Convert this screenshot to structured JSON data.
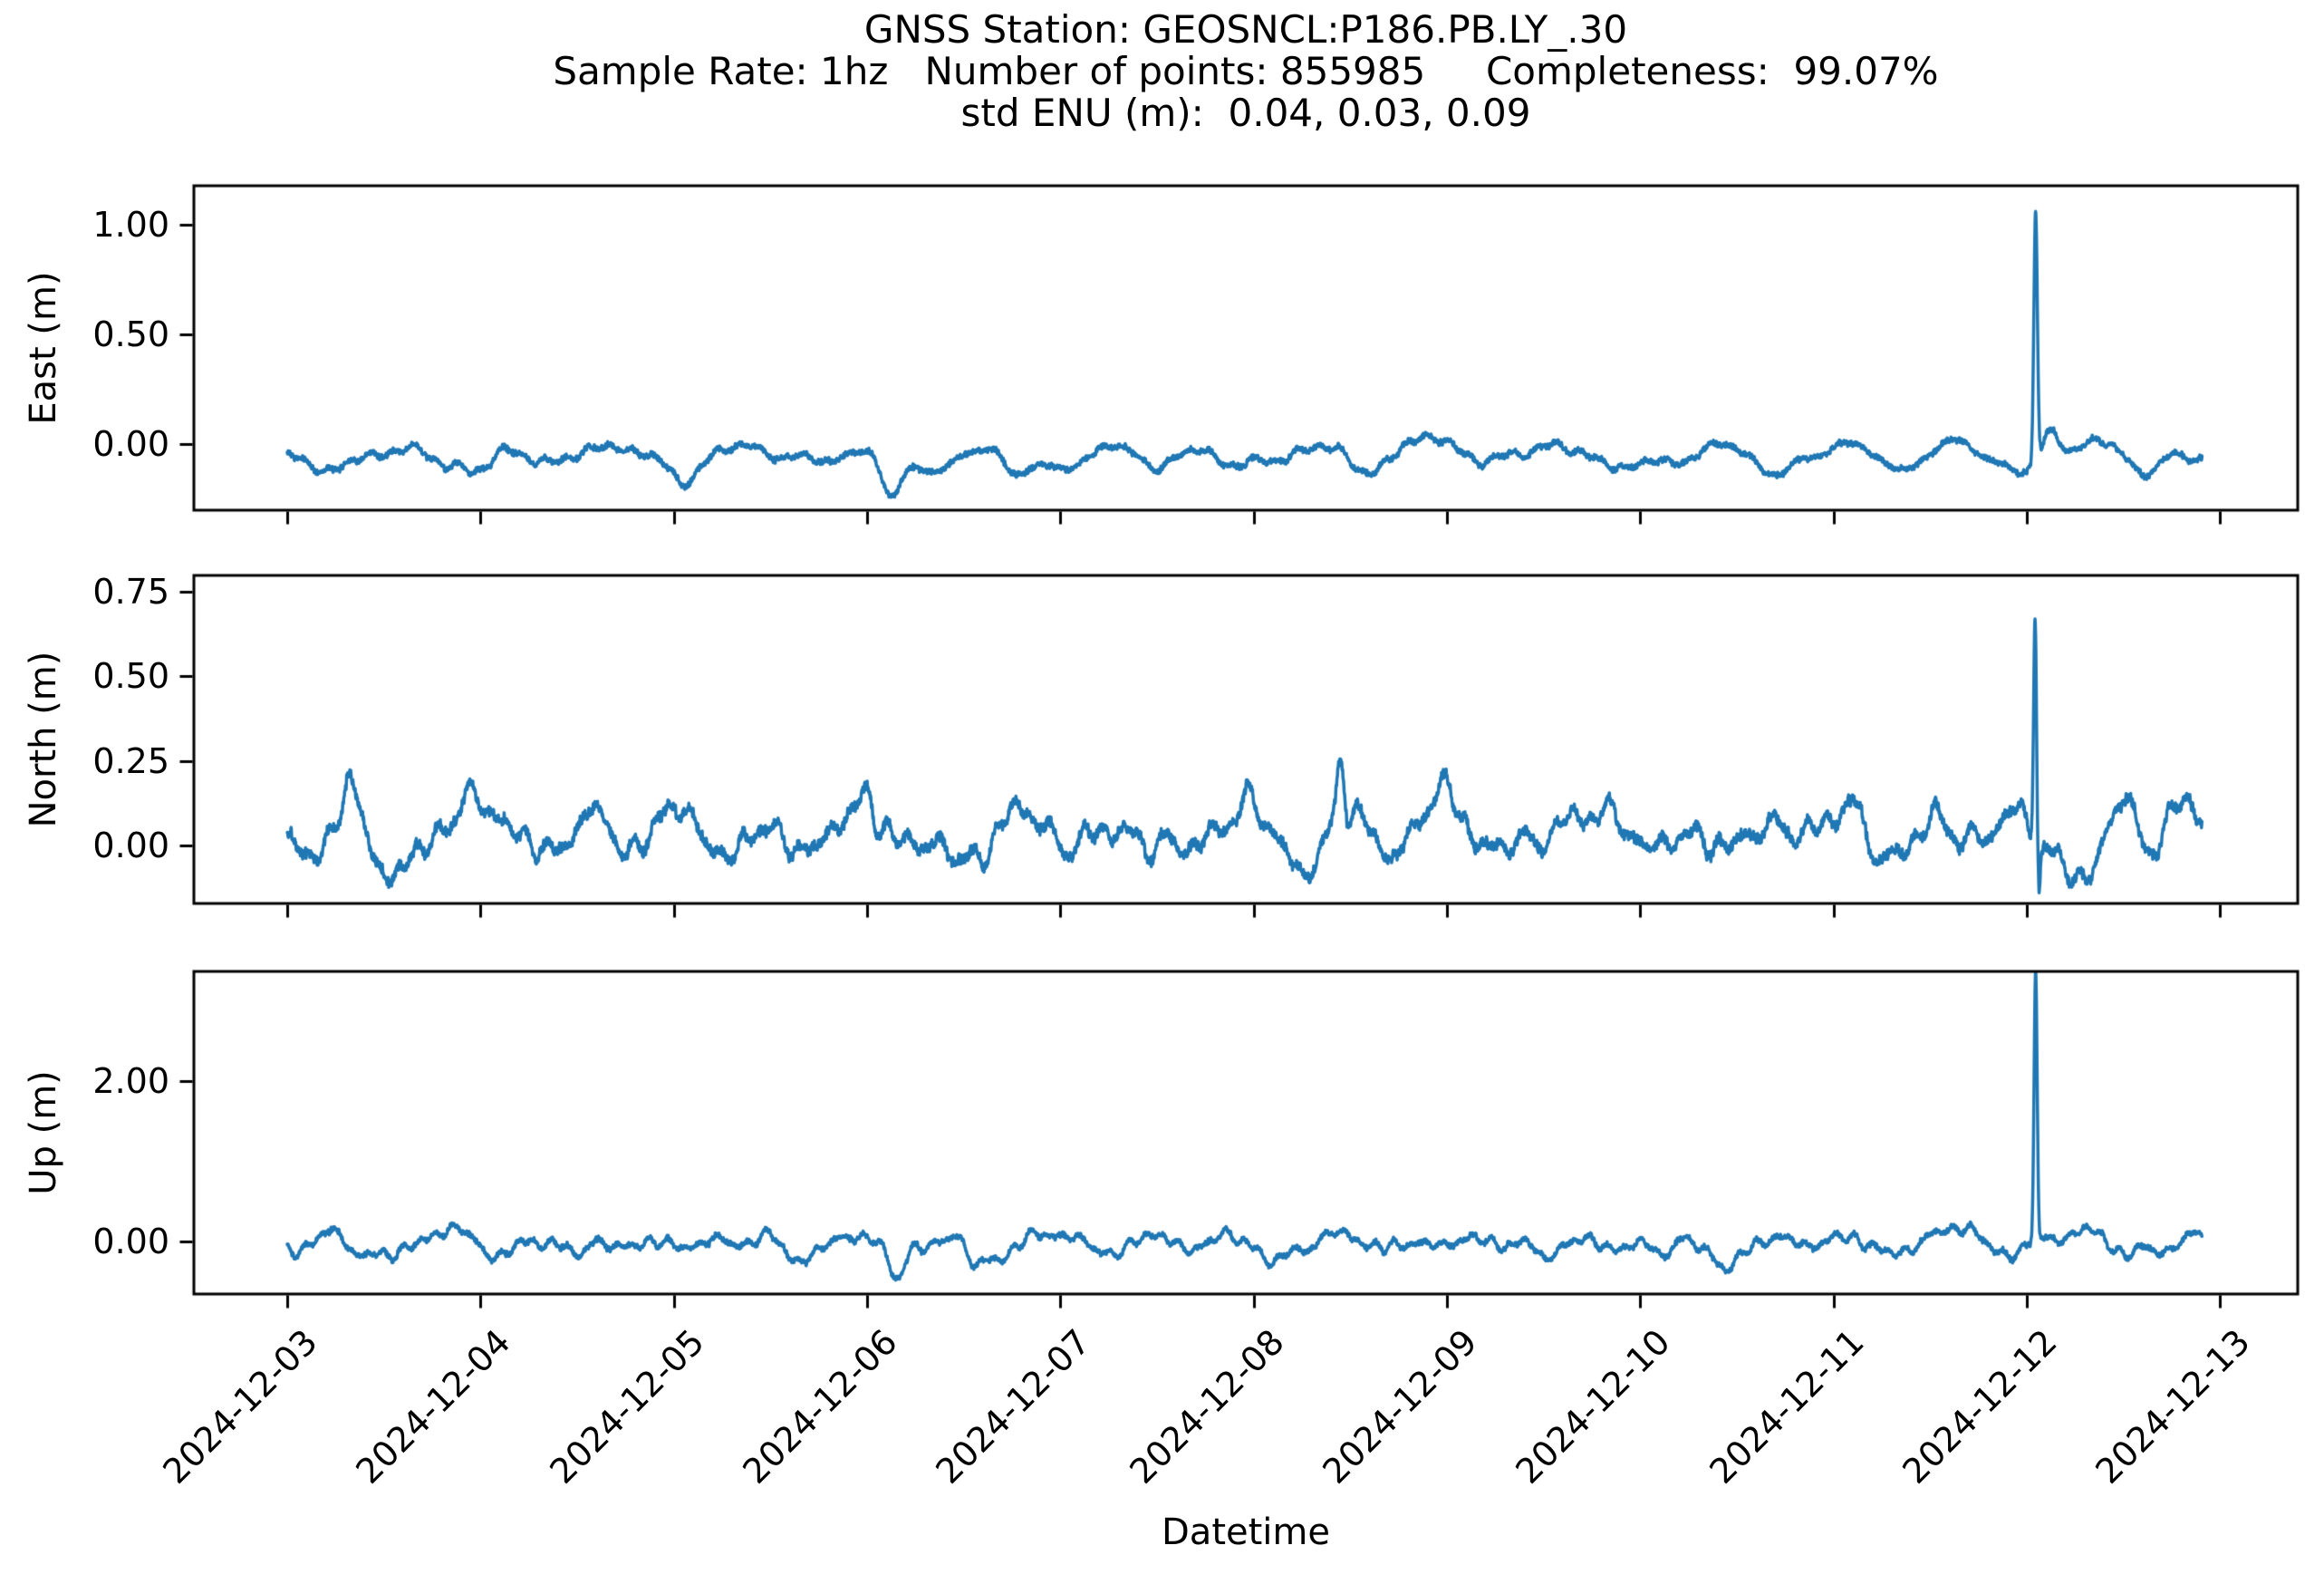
{
  "title": {
    "line1": "GNSS Station: GEOSNCL:P186.PB.LY_.30",
    "line2": "Sample Rate: 1hz   Number of points: 855985     Completeness:  99.07%",
    "line3": "std ENU (m):  0.04, 0.03, 0.09"
  },
  "station": {
    "id": "GEOSNCL:P186.PB.LY_.30",
    "sample_rate": "1hz",
    "number_of_points": "855985",
    "completeness_percent": "99.07%",
    "std_enu_m": [
      "0.04",
      "0.03",
      "0.09"
    ]
  },
  "chart_data": {
    "type": "line",
    "xlabel": "Datetime",
    "x_tick_labels": [
      "2024-12-03",
      "2024-12-04",
      "2024-12-05",
      "2024-12-06",
      "2024-12-07",
      "2024-12-08",
      "2024-12-09",
      "2024-12-10",
      "2024-12-11",
      "2024-12-12",
      "2024-12-13"
    ],
    "xlim_days": [
      -0.483,
      10.401
    ],
    "x_data_range_days": [
      0.0,
      9.907
    ],
    "line_color": "#1f77b4",
    "axis_color": "#000000",
    "grid": false,
    "legend": false,
    "panels": [
      {
        "ylabel": "East (m)",
        "ylim": [
          -0.302,
          1.178
        ],
        "yticks": [
          {
            "value": 1.0,
            "label": "1.00"
          },
          {
            "value": 0.5,
            "label": "0.50"
          },
          {
            "value": 0.0,
            "label": "0.00"
          }
        ],
        "baseline_m": -0.055,
        "noise_band_m": 0.07,
        "spike": {
          "date": "2024-12-12",
          "day": 9.045,
          "peak_m": 1.1
        },
        "min_dip": {
          "day": 3.12,
          "value_m": -0.25
        },
        "render": {
          "seed": 42,
          "base": -0.055,
          "octaves": [
            {
              "f": 1.1,
              "amp": 0.022
            },
            {
              "f": 5.0,
              "amp": 0.012
            }
          ],
          "fine_amp": 0.016,
          "events": [
            {
              "t": 0.55,
              "w": 0.08,
              "a": -0.045
            },
            {
              "t": 1.0,
              "w": 0.06,
              "a": -0.04
            },
            {
              "t": 2.05,
              "w": 0.05,
              "a": -0.05
            },
            {
              "t": 3.12,
              "w": 0.045,
              "a": -0.185
            },
            {
              "t": 3.45,
              "w": 0.1,
              "a": -0.05
            },
            {
              "t": 3.75,
              "w": 0.05,
              "a": -0.1
            },
            {
              "t": 4.5,
              "w": 0.05,
              "a": -0.06
            },
            {
              "t": 5.55,
              "w": 0.06,
              "a": -0.05
            },
            {
              "t": 5.95,
              "w": 0.12,
              "a": 0.075
            },
            {
              "t": 7.3,
              "w": 0.1,
              "a": -0.04
            },
            {
              "t": 9.045,
              "w": 0.009,
              "a": 1.155
            },
            {
              "t": 9.12,
              "w": 0.04,
              "a": 0.12
            },
            {
              "t": 9.6,
              "w": 0.05,
              "a": -0.06
            },
            {
              "t": 9.75,
              "w": 0.04,
              "a": 0.05
            }
          ]
        }
      },
      {
        "ylabel": "North (m)",
        "ylim": [
          -0.172,
          0.798
        ],
        "yticks": [
          {
            "value": 0.75,
            "label": "0.75"
          },
          {
            "value": 0.5,
            "label": "0.50"
          },
          {
            "value": 0.25,
            "label": "0.25"
          },
          {
            "value": 0.0,
            "label": "0.00"
          }
        ],
        "baseline_m": 0.03,
        "noise_band_m": 0.08,
        "spike": {
          "date": "2024-12-12",
          "day": 9.045,
          "peak_m": 0.75,
          "trough_m": -0.12
        },
        "render": {
          "seed": 1337,
          "base": 0.03,
          "octaves": [
            {
              "f": 1.3,
              "amp": 0.03
            },
            {
              "f": 6.0,
              "amp": 0.016
            }
          ],
          "fine_amp": 0.02,
          "events": [
            {
              "t": 0.32,
              "w": 0.025,
              "a": 0.13
            },
            {
              "t": 0.5,
              "w": 0.05,
              "a": -0.1
            },
            {
              "t": 0.95,
              "w": 0.05,
              "a": 0.09
            },
            {
              "t": 1.6,
              "w": 0.04,
              "a": 0.09
            },
            {
              "t": 3.0,
              "w": 0.03,
              "a": 0.11
            },
            {
              "t": 3.3,
              "w": 0.05,
              "a": -0.06
            },
            {
              "t": 5.45,
              "w": 0.018,
              "a": 0.19
            },
            {
              "t": 6.0,
              "w": 0.08,
              "a": 0.07
            },
            {
              "t": 6.6,
              "w": 0.05,
              "a": 0.08
            },
            {
              "t": 8.1,
              "w": 0.06,
              "a": 0.07
            },
            {
              "t": 9.043,
              "w": 0.008,
              "a": 0.73
            },
            {
              "t": 9.058,
              "w": 0.009,
              "a": -0.17
            },
            {
              "t": 9.33,
              "w": 0.05,
              "a": -0.14
            },
            {
              "t": 9.5,
              "w": 0.04,
              "a": 0.1
            },
            {
              "t": 9.8,
              "w": 0.05,
              "a": 0.06
            }
          ]
        }
      },
      {
        "ylabel": "Up (m)",
        "ylim": [
          -0.655,
          3.367
        ],
        "yticks": [
          {
            "value": 2.0,
            "label": "2.00"
          },
          {
            "value": 0.0,
            "label": "0.00"
          }
        ],
        "baseline_m": -0.02,
        "noise_band_m": 0.18,
        "spike": {
          "date": "2024-12-12",
          "day": 9.045,
          "peak_m": 3.34
        },
        "min_dip": {
          "day": 3.15,
          "value_m": -0.5
        },
        "render": {
          "seed": 2024,
          "base": -0.015,
          "octaves": [
            {
              "f": 1.2,
              "amp": 0.05
            },
            {
              "f": 6.0,
              "amp": 0.03
            }
          ],
          "fine_amp": 0.04,
          "events": [
            {
              "t": 0.35,
              "w": 0.04,
              "a": -0.2
            },
            {
              "t": 1.5,
              "w": 0.04,
              "a": -0.28
            },
            {
              "t": 2.6,
              "w": 0.05,
              "a": -0.15
            },
            {
              "t": 3.15,
              "w": 0.035,
              "a": -0.45
            },
            {
              "t": 3.55,
              "w": 0.045,
              "a": -0.35
            },
            {
              "t": 5.1,
              "w": 0.04,
              "a": -0.26
            },
            {
              "t": 6.5,
              "w": 0.04,
              "a": -0.22
            },
            {
              "t": 7.12,
              "w": 0.04,
              "a": -0.28
            },
            {
              "t": 7.45,
              "w": 0.05,
              "a": -0.3
            },
            {
              "t": 8.7,
              "w": 0.05,
              "a": 0.12
            },
            {
              "t": 9.045,
              "w": 0.008,
              "a": 3.36
            },
            {
              "t": 9.3,
              "w": 0.06,
              "a": 0.14
            },
            {
              "t": 9.5,
              "w": 0.05,
              "a": -0.2
            },
            {
              "t": 9.85,
              "w": 0.04,
              "a": 0.1
            }
          ]
        }
      }
    ]
  }
}
